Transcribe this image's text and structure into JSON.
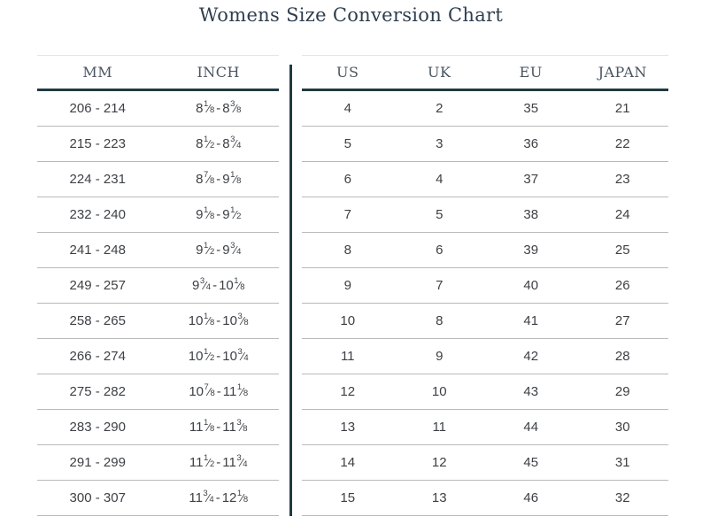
{
  "title": "Womens Size Conversion Chart",
  "chart_data": {
    "type": "table",
    "title": "Womens Size Conversion Chart",
    "columns": [
      "MM",
      "INCH",
      "US",
      "UK",
      "EU",
      "JAPAN"
    ],
    "rows": [
      [
        "206 - 214",
        "8⅛ - 8⅜",
        "4",
        "2",
        "35",
        "21"
      ],
      [
        "215 - 223",
        "8½ - 8¾",
        "5",
        "3",
        "36",
        "22"
      ],
      [
        "224 - 231",
        "8⅞ - 9⅛",
        "6",
        "4",
        "37",
        "23"
      ],
      [
        "232 - 240",
        "9⅛ - 9½",
        "7",
        "5",
        "38",
        "24"
      ],
      [
        "241 - 248",
        "9½ - 9¾",
        "8",
        "6",
        "39",
        "25"
      ],
      [
        "249 - 257",
        "9¾ - 10⅛",
        "9",
        "7",
        "40",
        "26"
      ],
      [
        "258 - 265",
        "10⅛ - 10⅜",
        "10",
        "8",
        "41",
        "27"
      ],
      [
        "266 - 274",
        "10½ - 10¾",
        "11",
        "9",
        "42",
        "28"
      ],
      [
        "275 - 282",
        "10⅞ - 11⅛",
        "12",
        "10",
        "43",
        "29"
      ],
      [
        "283 - 290",
        "11⅛ - 11⅜",
        "13",
        "11",
        "44",
        "30"
      ],
      [
        "291 - 299",
        "11½ - 11¾",
        "14",
        "12",
        "45",
        "31"
      ],
      [
        "300 - 307",
        "11¾ - 12⅛",
        "15",
        "13",
        "46",
        "32"
      ]
    ]
  },
  "colors": {
    "accent_dark": "#223a41",
    "title_text": "#2e3e4e",
    "header_text": "#4a5560",
    "data_text": "#3d4045",
    "row_border": "#b9b9b9"
  }
}
